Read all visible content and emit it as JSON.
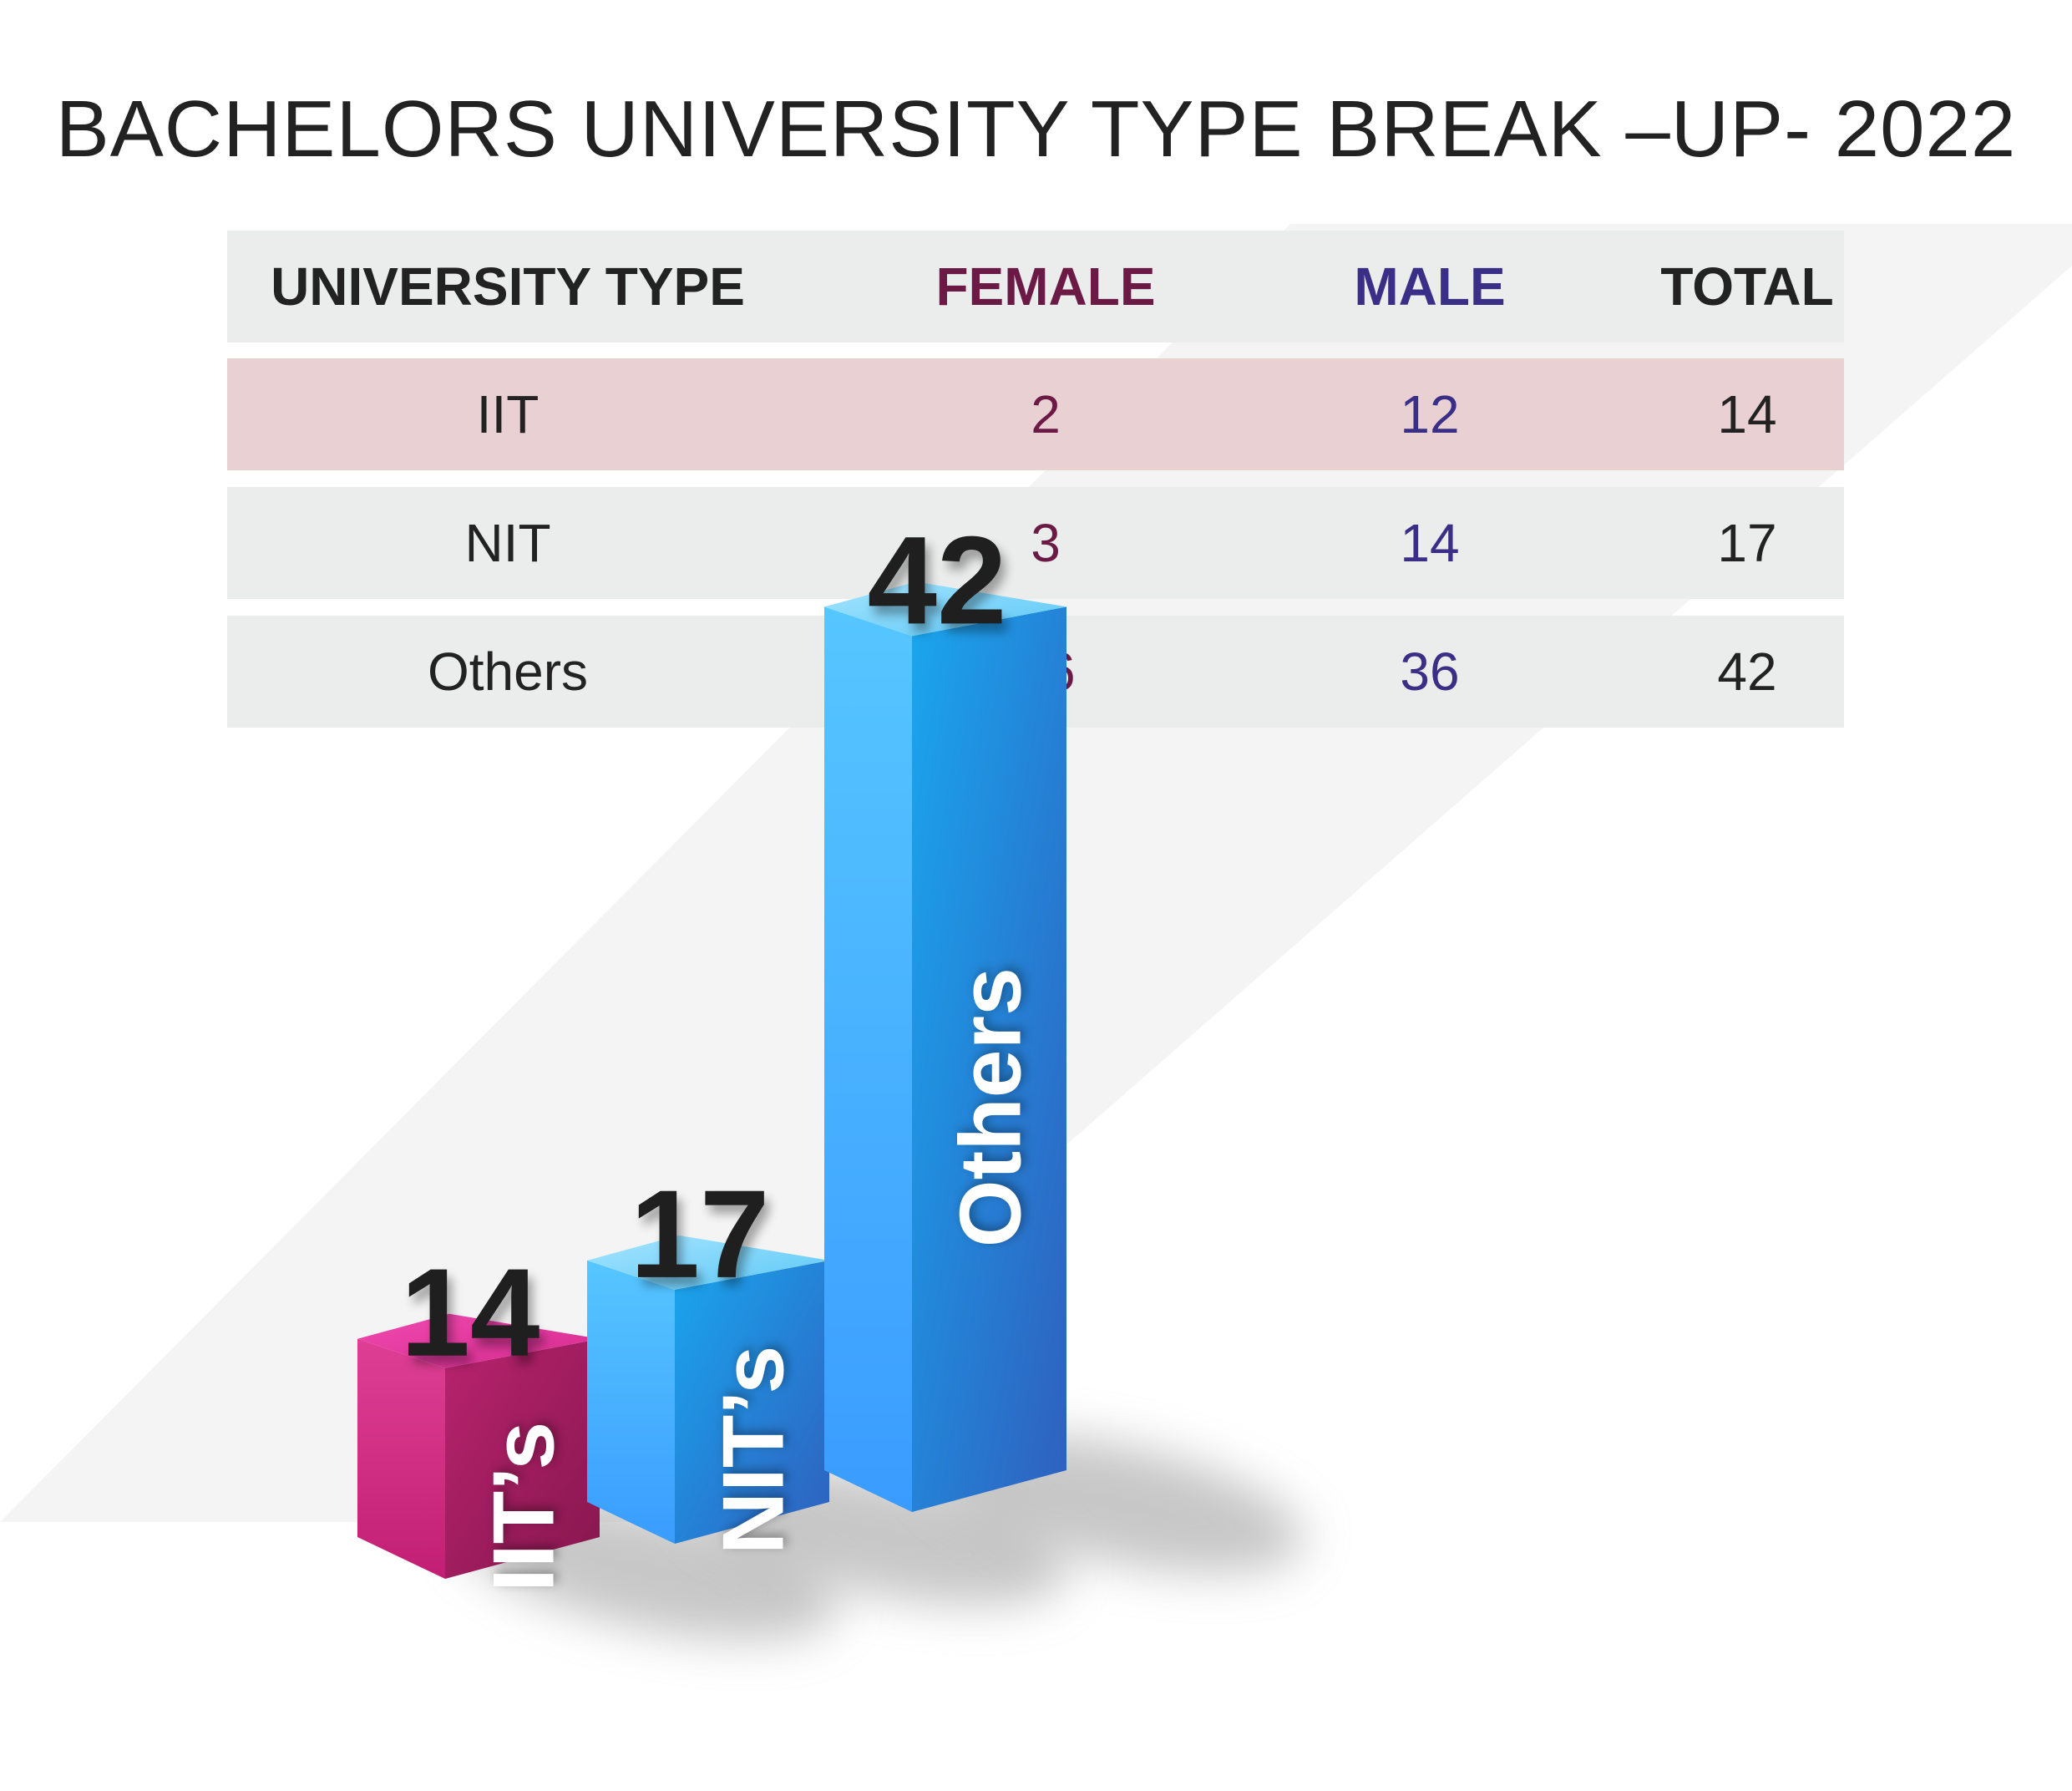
{
  "title": "BACHELORS UNIVERSITY TYPE BREAK –UP- 2022",
  "table": {
    "headers": [
      "UNIVERSITY TYPE",
      "FEMALE",
      "MALE",
      "TOTAL"
    ],
    "rows": [
      [
        "IIT",
        "2",
        "12",
        "14"
      ],
      [
        "NIT",
        "3",
        "14",
        "17"
      ],
      [
        "Others",
        "06",
        "36",
        "42"
      ]
    ]
  },
  "colors": {
    "female": "#6b1a46",
    "male": "#3a2f86",
    "highlight_row": "#e8d0d3",
    "row": "#ebedec",
    "bar_iit": "#d1237f",
    "bar_nit": "#3aa8ee",
    "bar_others": "#2c96e6"
  },
  "chart_data": {
    "type": "bar",
    "categories": [
      "IIT’s",
      "NIT’s",
      "Others"
    ],
    "values": [
      14,
      17,
      42
    ],
    "value_labels": [
      "14",
      "17",
      "42"
    ],
    "bar_colors": [
      "#d1237f",
      "#3aa8ee",
      "#2c96e6"
    ],
    "style": "3d",
    "label_placement": "vertical text on bar front"
  }
}
